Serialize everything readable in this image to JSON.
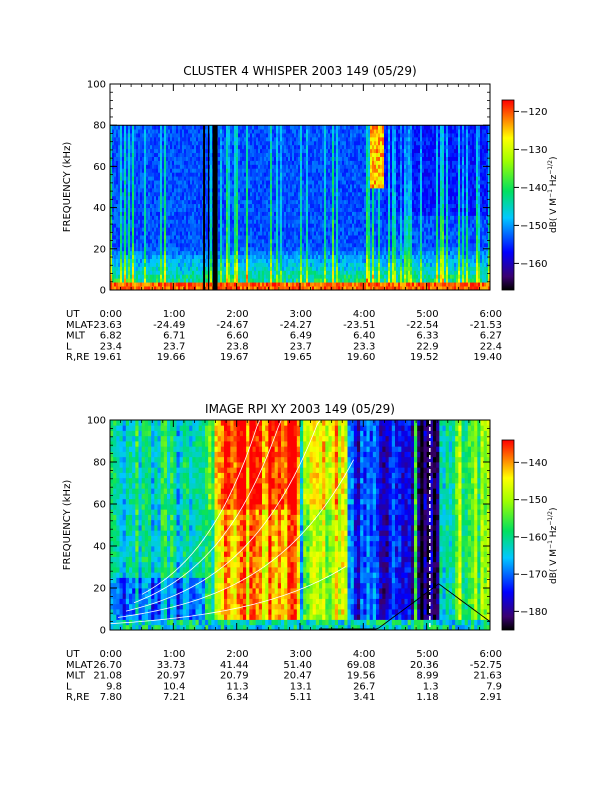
{
  "chart_data": [
    {
      "type": "heatmap",
      "title": "CLUSTER 4 WHISPER 2003 149 (05/29)",
      "ylabel": "FREQUENCY (kHz)",
      "ylim": [
        0,
        100
      ],
      "yticks": [
        "0",
        "20",
        "40",
        "60",
        "80",
        "100"
      ],
      "x": [
        "0:00",
        "1:00",
        "2:00",
        "3:00",
        "4:00",
        "5:00",
        "6:00"
      ],
      "colorbar": {
        "label": "dB( V M⁻¹ Hz⁻¹ᐟ²)",
        "label_main": "dB( V M",
        "label_exp1": "−1",
        "label_mid": " Hz",
        "label_exp2": "−1/2",
        "label_end": ")",
        "range": [
          -167,
          -117
        ],
        "ticks": [
          "−120",
          "−130",
          "−140",
          "−150",
          "−160"
        ],
        "tick_values": [
          -120,
          -130,
          -140,
          -150,
          -160
        ]
      },
      "data_top_khz": 80,
      "ephemeris": {
        "rows": [
          {
            "label": "UT",
            "values": [
              "0:00",
              "1:00",
              "2:00",
              "3:00",
              "4:00",
              "5:00",
              "6:00"
            ]
          },
          {
            "label": "MLAT",
            "values": [
              "-23.63",
              "-24.49",
              "-24.67",
              "-24.27",
              "-23.51",
              "-22.54",
              "-21.53"
            ]
          },
          {
            "label": "MLT",
            "values": [
              "6.82",
              "6.71",
              "6.60",
              "6.49",
              "6.40",
              "6.33",
              "6.27"
            ]
          },
          {
            "label": "L",
            "values": [
              "23.4",
              "23.7",
              "23.8",
              "23.7",
              "23.3",
              "22.9",
              "22.4"
            ]
          },
          {
            "label": "R,RE",
            "values": [
              "19.61",
              "19.66",
              "19.67",
              "19.65",
              "19.60",
              "19.52",
              "19.40"
            ]
          }
        ]
      }
    },
    {
      "type": "heatmap",
      "title": "IMAGE RPI XY 2003 149 (05/29)",
      "ylabel": "FREQUENCY (kHz)",
      "ylim": [
        0,
        100
      ],
      "yticks": [
        "0",
        "20",
        "40",
        "60",
        "80",
        "100"
      ],
      "x": [
        "0:00",
        "1:00",
        "2:00",
        "3:00",
        "4:00",
        "5:00",
        "6:00"
      ],
      "colorbar": {
        "label": "dB( V M⁻¹ Hz⁻¹ᐟ²)",
        "label_main": "dB( V M",
        "label_exp1": "−1",
        "label_mid": " Hz",
        "label_exp2": "−1/2",
        "label_end": ")",
        "range": [
          -185,
          -134
        ],
        "ticks": [
          "−140",
          "−150",
          "−160",
          "−170",
          "−180"
        ],
        "tick_values": [
          -140,
          -150,
          -160,
          -170,
          -180
        ]
      },
      "overlay_curves": "white",
      "ephemeris": {
        "rows": [
          {
            "label": "UT",
            "values": [
              "0:00",
              "1:00",
              "2:00",
              "3:00",
              "4:00",
              "5:00",
              "6:00"
            ]
          },
          {
            "label": "MLAT",
            "values": [
              "26.70",
              "33.73",
              "41.44",
              "51.40",
              "69.08",
              "20.36",
              "-52.75"
            ]
          },
          {
            "label": "MLT",
            "values": [
              "21.08",
              "20.97",
              "20.79",
              "20.47",
              "19.56",
              "8.99",
              "21.63"
            ]
          },
          {
            "label": "L",
            "values": [
              "9.8",
              "10.4",
              "11.3",
              "13.1",
              "26.7",
              "1.3",
              "7.9"
            ]
          },
          {
            "label": "R,RE",
            "values": [
              "7.80",
              "7.21",
              "6.34",
              "5.11",
              "3.41",
              "1.18",
              "2.91"
            ]
          }
        ]
      }
    }
  ]
}
